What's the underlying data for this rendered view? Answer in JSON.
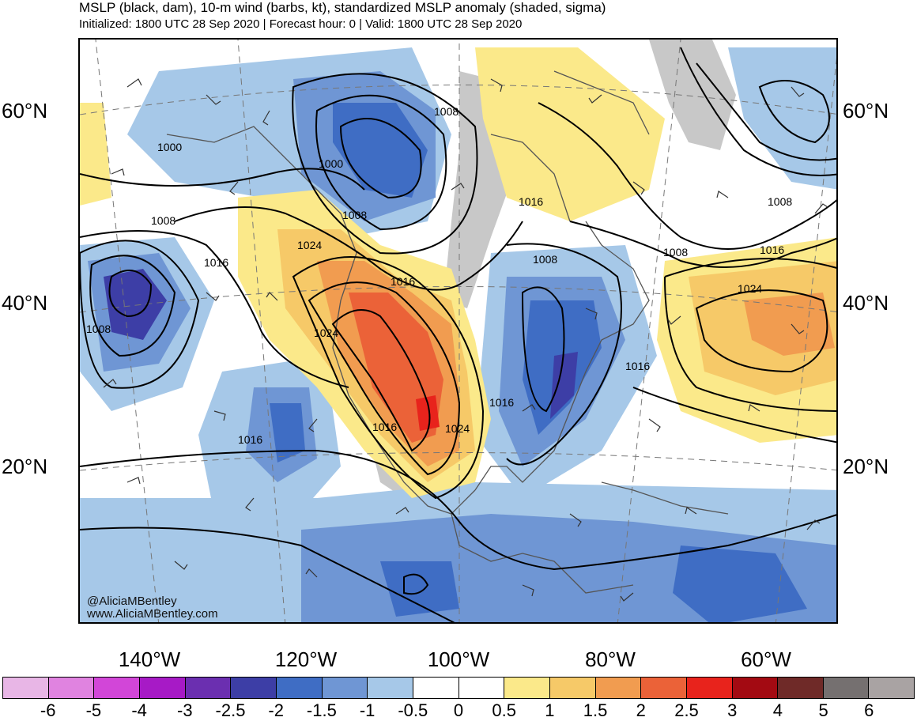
{
  "header": {
    "title": "MSLP (black, dam), 10-m wind (barbs, kt), standardized MSLP anomaly (shaded, sigma)",
    "subtitle": "Initialized: 1800 UTC 28 Sep 2020 | Forecast hour: 0 | Valid: 1800 UTC 28 Sep 2020"
  },
  "axes": {
    "lat_left": [
      "60°N",
      "40°N",
      "20°N"
    ],
    "lat_right": [
      "60°N",
      "40°N",
      "20°N"
    ],
    "lon_bottom": [
      "140°W",
      "120°W",
      "100°W",
      "80°W",
      "60°W"
    ]
  },
  "isobar_labels": [
    "1000",
    "1008",
    "1008",
    "1016",
    "1008",
    "1000",
    "1008",
    "1024",
    "1016",
    "1024",
    "1016",
    "1016",
    "1024",
    "1008",
    "1016",
    "1016",
    "1016",
    "1024",
    "1016",
    "1008",
    "1008"
  ],
  "watermark": {
    "handle": "@AliciaMBentley",
    "url": "www.AliciaMBentley.com"
  },
  "colorbar": {
    "colors": [
      "#e8b6e6",
      "#e083e0",
      "#d246d8",
      "#a71ac6",
      "#6b2fb0",
      "#3d3ea6",
      "#3f6dc4",
      "#6f96d4",
      "#a6c8e8",
      "#ffffff",
      "#ffffff",
      "#fbe98a",
      "#f6c968",
      "#f19c50",
      "#eb6238",
      "#e8231c",
      "#a30a12",
      "#6f2a28",
      "#757070",
      "#a9a3a3"
    ],
    "labels": [
      "-6",
      "-5",
      "-4",
      "-3",
      "-2.5",
      "-2",
      "-1.5",
      "-1",
      "-0.5",
      "0",
      "0.5",
      "1",
      "1.5",
      "2",
      "2.5",
      "3",
      "4",
      "5",
      "6"
    ]
  },
  "map_colors": {
    "neg_light": "#a6c8e8",
    "neg_mid": "#6f96d4",
    "neg_strong": "#3f6dc4",
    "neg_deep": "#3d3ea6",
    "neg_extreme": "#6b2fb0",
    "pos_light": "#fbe98a",
    "pos_mid": "#f6c968",
    "pos_strong": "#f19c50",
    "pos_deep": "#eb6238",
    "pos_extreme": "#e8231c",
    "land_gray": "#c8c8c8"
  }
}
